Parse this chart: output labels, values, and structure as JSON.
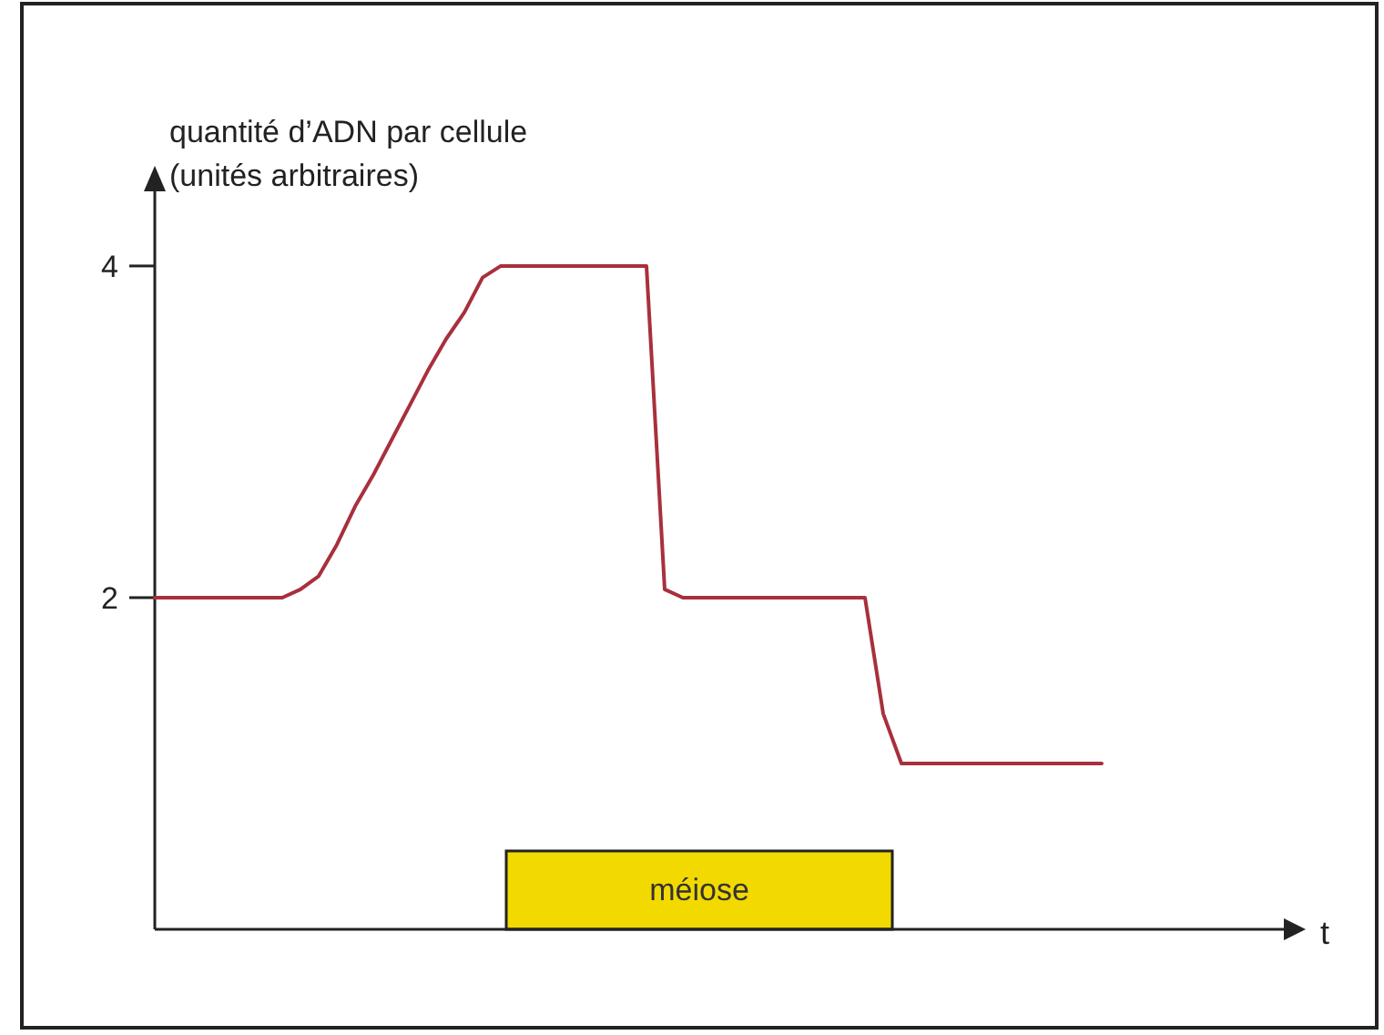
{
  "chart_data": {
    "type": "line",
    "ylabel": "quantité d’ADN par cellule\n(unités arbitraires)",
    "annotations": [
      "t",
      "méiose"
    ],
    "categories": [
      null,
      null,
      null,
      null,
      null,
      null,
      null,
      null,
      null,
      null,
      null,
      null,
      null,
      null,
      null,
      null,
      null,
      null,
      null,
      null,
      null,
      null,
      null,
      null,
      null,
      null,
      null,
      null,
      null,
      null,
      null,
      null,
      null,
      null,
      null,
      null,
      null,
      null,
      null,
      null,
      null,
      null,
      null,
      null,
      null,
      null,
      null,
      null,
      null,
      null,
      null,
      null,
      null
    ],
    "series": [
      {
        "color": "#a8303c",
        "values": [
          2,
          2,
          2,
          2,
          2,
          2,
          2,
          2,
          2.05,
          2.13,
          2.32,
          2.55,
          2.74,
          2.95,
          3.16,
          3.37,
          3.56,
          3.72,
          3.93,
          4,
          4,
          4,
          4,
          4,
          4,
          4,
          4,
          4,
          2.05,
          2,
          2,
          2,
          2,
          2,
          2,
          2,
          2,
          2,
          2,
          2,
          1.3,
          1,
          1,
          1,
          1,
          1,
          1,
          1,
          1,
          1,
          1,
          1,
          1
        ]
      }
    ],
    "ylim": [
      0,
      4.45
    ],
    "yticks": [
      2,
      4
    ],
    "tick_labels": "y"
  }
}
